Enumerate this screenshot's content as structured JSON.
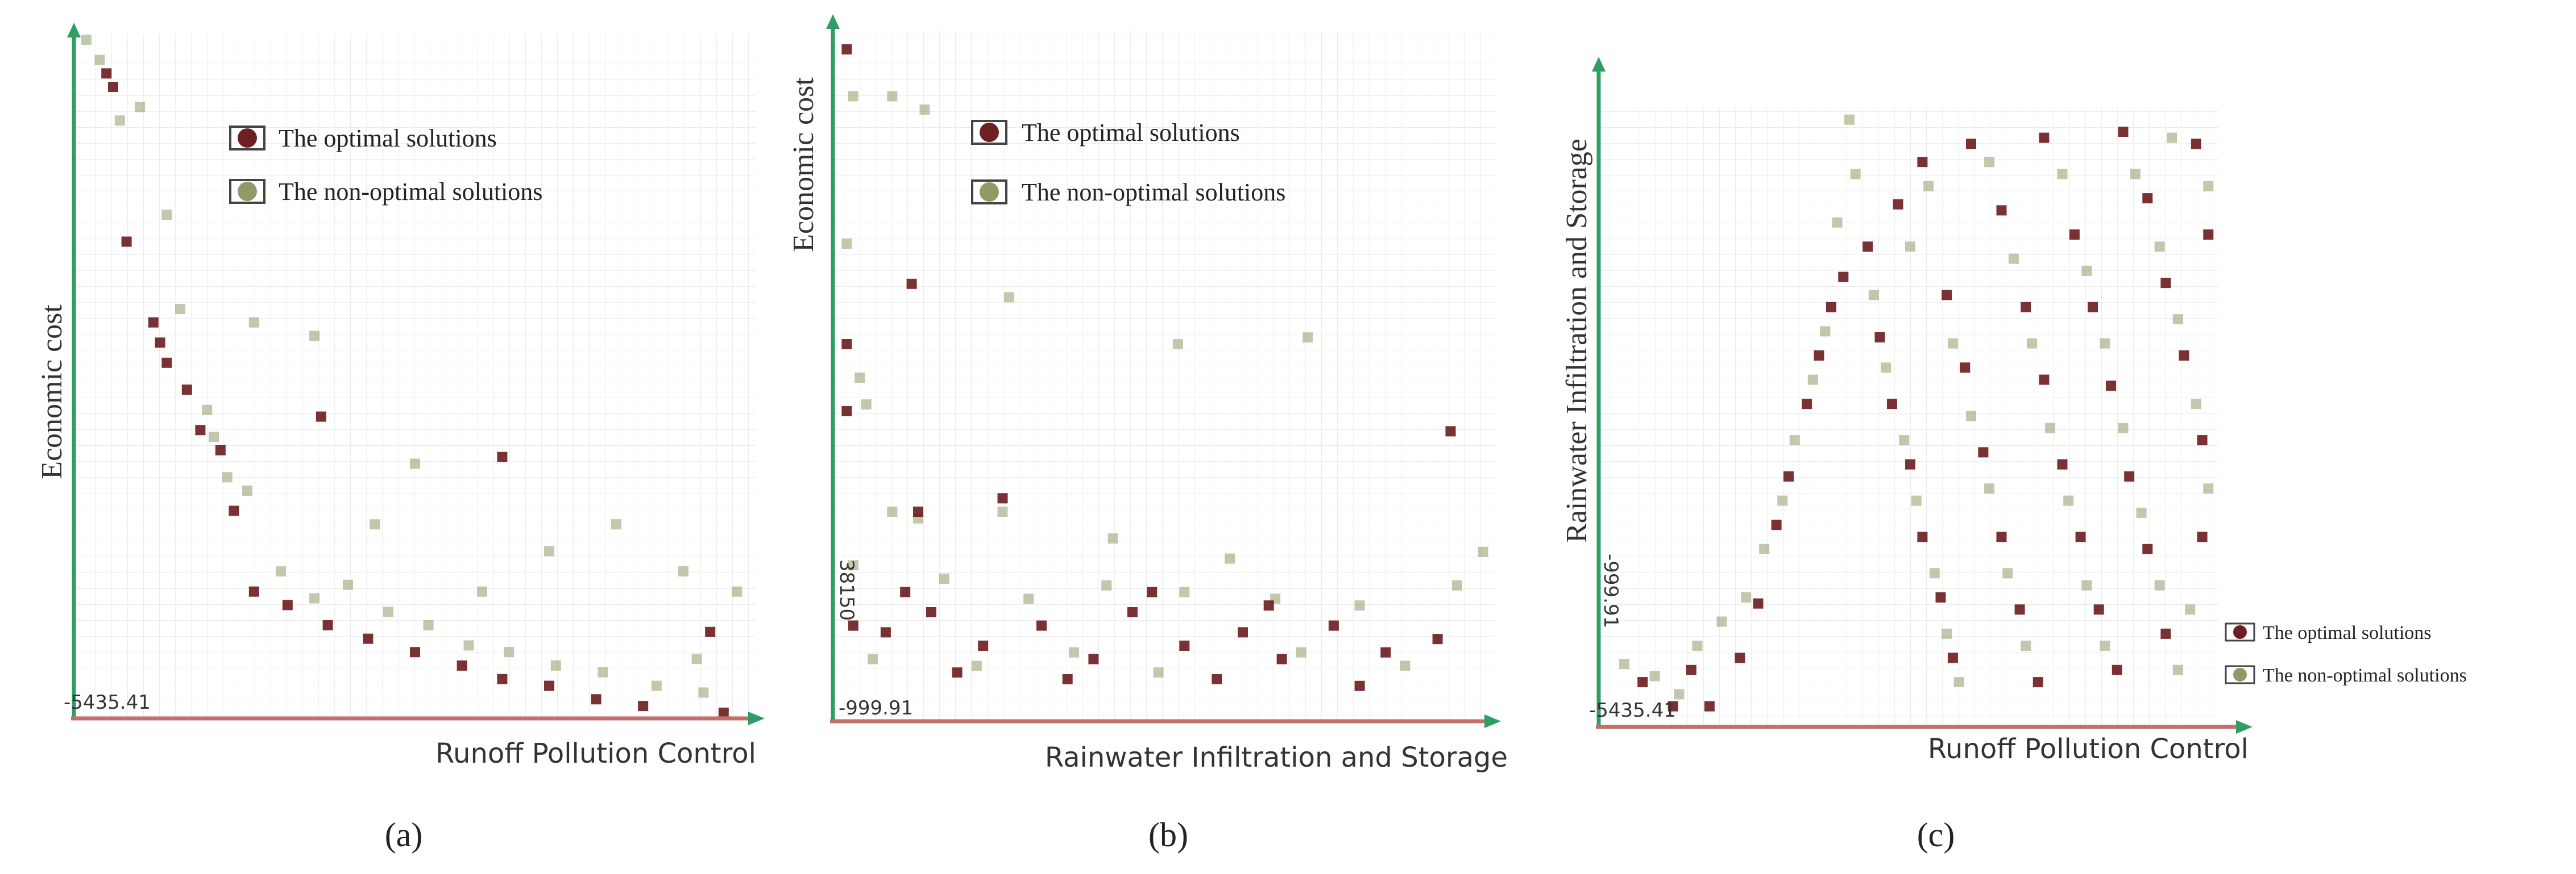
{
  "colors": {
    "optimal": "#6e1f22",
    "non_optimal": "#8f9a66",
    "x_axis": "#c46e6e",
    "y_axis": "#2f9e64",
    "grid": "#ececec",
    "text": "#333333"
  },
  "legend": {
    "optimal_label": "The optimal solutions",
    "non_optimal_label": "The non-optimal solutions"
  },
  "chart_data": [
    {
      "type": "scatter",
      "panel_label": "(a)",
      "xlabel": "Runoff Pollution Control",
      "ylabel": "Economic cost",
      "origin_label": "-5435.41",
      "y_tick_label": "",
      "xlim": [
        0,
        100
      ],
      "ylim": [
        0,
        100
      ],
      "legend_position": "top",
      "series": [
        {
          "name": "The optimal solutions",
          "points": [
            [
              4,
              95
            ],
            [
              5,
              93
            ],
            [
              7,
              70
            ],
            [
              11,
              58
            ],
            [
              12,
              55
            ],
            [
              13,
              52
            ],
            [
              16,
              48
            ],
            [
              18,
              42
            ],
            [
              21,
              39
            ],
            [
              23,
              30
            ],
            [
              26,
              18
            ],
            [
              31,
              16
            ],
            [
              37,
              13
            ],
            [
              43,
              11
            ],
            [
              50,
              9
            ],
            [
              57,
              7
            ],
            [
              63,
              5
            ],
            [
              70,
              4
            ],
            [
              77,
              2
            ],
            [
              84,
              1
            ],
            [
              96,
              0
            ],
            [
              36,
              44
            ],
            [
              63,
              38
            ],
            [
              94,
              12
            ]
          ]
        },
        {
          "name": "The non-optimal solutions",
          "points": [
            [
              1,
              100
            ],
            [
              3,
              97
            ],
            [
              6,
              88
            ],
            [
              9,
              90
            ],
            [
              13,
              74
            ],
            [
              15,
              60
            ],
            [
              19,
              45
            ],
            [
              20,
              41
            ],
            [
              22,
              35
            ],
            [
              25,
              33
            ],
            [
              30,
              21
            ],
            [
              35,
              17
            ],
            [
              40,
              19
            ],
            [
              46,
              15
            ],
            [
              52,
              13
            ],
            [
              58,
              10
            ],
            [
              64,
              9
            ],
            [
              71,
              7
            ],
            [
              78,
              6
            ],
            [
              86,
              4
            ],
            [
              93,
              3
            ],
            [
              26,
              58
            ],
            [
              35,
              56
            ],
            [
              50,
              37
            ],
            [
              70,
              24
            ],
            [
              80,
              28
            ],
            [
              90,
              21
            ],
            [
              98,
              18
            ],
            [
              44,
              28
            ],
            [
              60,
              18
            ],
            [
              92,
              8
            ]
          ]
        }
      ]
    },
    {
      "type": "scatter",
      "panel_label": "(b)",
      "xlabel": "Rainwater Infiltration and Storage",
      "ylabel": "Economic cost",
      "origin_label": "-999.91",
      "y_tick_label": "38150",
      "xlim": [
        0,
        100
      ],
      "ylim": [
        0,
        100
      ],
      "legend_position": "top",
      "series": [
        {
          "name": "The optimal solutions",
          "points": [
            [
              1,
              99
            ],
            [
              11,
              64
            ],
            [
              1,
              55
            ],
            [
              1,
              45
            ],
            [
              25,
              32
            ],
            [
              12,
              30
            ],
            [
              94,
              42
            ],
            [
              2,
              13
            ],
            [
              7,
              12
            ],
            [
              14,
              15
            ],
            [
              22,
              10
            ],
            [
              31,
              13
            ],
            [
              39,
              8
            ],
            [
              45,
              15
            ],
            [
              53,
              10
            ],
            [
              62,
              12
            ],
            [
              68,
              8
            ],
            [
              76,
              13
            ],
            [
              84,
              9
            ],
            [
              92,
              11
            ],
            [
              18,
              6
            ],
            [
              35,
              5
            ],
            [
              58,
              5
            ],
            [
              80,
              4
            ],
            [
              10,
              18
            ],
            [
              48,
              18
            ],
            [
              66,
              16
            ]
          ]
        },
        {
          "name": "The non-optimal solutions",
          "points": [
            [
              2,
              92
            ],
            [
              8,
              92
            ],
            [
              13,
              90
            ],
            [
              1,
              70
            ],
            [
              3,
              50
            ],
            [
              4,
              46
            ],
            [
              8,
              30
            ],
            [
              12,
              29
            ],
            [
              25,
              30
            ],
            [
              2,
              22
            ],
            [
              16,
              20
            ],
            [
              29,
              17
            ],
            [
              41,
              19
            ],
            [
              53,
              18
            ],
            [
              67,
              17
            ],
            [
              80,
              16
            ],
            [
              95,
              19
            ],
            [
              5,
              8
            ],
            [
              21,
              7
            ],
            [
              36,
              9
            ],
            [
              49,
              6
            ],
            [
              71,
              9
            ],
            [
              87,
              7
            ],
            [
              26,
              62
            ],
            [
              52,
              55
            ],
            [
              72,
              56
            ],
            [
              99,
              24
            ],
            [
              42,
              26
            ],
            [
              60,
              23
            ]
          ]
        }
      ]
    },
    {
      "type": "scatter",
      "panel_label": "(c)",
      "xlabel": "Runoff Pollution Control",
      "ylabel": "Rainwater Infiltration and Storage",
      "origin_label": "-5435.41",
      "y_tick_label": "-999.91",
      "xlim": [
        0,
        100
      ],
      "ylim": [
        0,
        100
      ],
      "legend_position": "bottom-right",
      "series": [
        {
          "name": "The optimal solutions",
          "points": [
            [
              6,
              6
            ],
            [
              11,
              2
            ],
            [
              14,
              8
            ],
            [
              17,
              2
            ],
            [
              22,
              10
            ],
            [
              25,
              19
            ],
            [
              28,
              32
            ],
            [
              30,
              40
            ],
            [
              33,
              52
            ],
            [
              35,
              60
            ],
            [
              37,
              68
            ],
            [
              39,
              73
            ],
            [
              43,
              78
            ],
            [
              45,
              63
            ],
            [
              47,
              52
            ],
            [
              50,
              42
            ],
            [
              52,
              30
            ],
            [
              55,
              20
            ],
            [
              57,
              10
            ],
            [
              48,
              85
            ],
            [
              52,
              92
            ],
            [
              56,
              70
            ],
            [
              59,
              58
            ],
            [
              62,
              44
            ],
            [
              65,
              30
            ],
            [
              68,
              18
            ],
            [
              71,
              6
            ],
            [
              60,
              95
            ],
            [
              65,
              84
            ],
            [
              69,
              68
            ],
            [
              72,
              56
            ],
            [
              75,
              42
            ],
            [
              78,
              30
            ],
            [
              81,
              18
            ],
            [
              84,
              8
            ],
            [
              72,
              96
            ],
            [
              77,
              80
            ],
            [
              80,
              68
            ],
            [
              83,
              55
            ],
            [
              86,
              40
            ],
            [
              89,
              28
            ],
            [
              92,
              14
            ],
            [
              85,
              97
            ],
            [
              89,
              86
            ],
            [
              92,
              72
            ],
            [
              95,
              60
            ],
            [
              98,
              46
            ],
            [
              98,
              30
            ],
            [
              97,
              95
            ],
            [
              99,
              80
            ]
          ]
        },
        {
          "name": "The non-optimal solutions",
          "points": [
            [
              3,
              9
            ],
            [
              8,
              7
            ],
            [
              12,
              4
            ],
            [
              15,
              12
            ],
            [
              19,
              16
            ],
            [
              23,
              20
            ],
            [
              26,
              28
            ],
            [
              29,
              36
            ],
            [
              31,
              46
            ],
            [
              34,
              56
            ],
            [
              36,
              64
            ],
            [
              38,
              82
            ],
            [
              41,
              90
            ],
            [
              44,
              70
            ],
            [
              46,
              58
            ],
            [
              49,
              46
            ],
            [
              51,
              36
            ],
            [
              54,
              24
            ],
            [
              56,
              14
            ],
            [
              58,
              6
            ],
            [
              50,
              78
            ],
            [
              53,
              88
            ],
            [
              57,
              62
            ],
            [
              60,
              50
            ],
            [
              63,
              38
            ],
            [
              66,
              24
            ],
            [
              69,
              12
            ],
            [
              63,
              92
            ],
            [
              67,
              76
            ],
            [
              70,
              62
            ],
            [
              73,
              48
            ],
            [
              76,
              36
            ],
            [
              79,
              22
            ],
            [
              82,
              12
            ],
            [
              75,
              90
            ],
            [
              79,
              74
            ],
            [
              82,
              62
            ],
            [
              85,
              48
            ],
            [
              88,
              34
            ],
            [
              91,
              22
            ],
            [
              94,
              8
            ],
            [
              87,
              90
            ],
            [
              91,
              78
            ],
            [
              94,
              66
            ],
            [
              97,
              52
            ],
            [
              99,
              38
            ],
            [
              96,
              18
            ],
            [
              93,
              96
            ],
            [
              99,
              88
            ],
            [
              40,
              99
            ]
          ]
        }
      ]
    }
  ]
}
